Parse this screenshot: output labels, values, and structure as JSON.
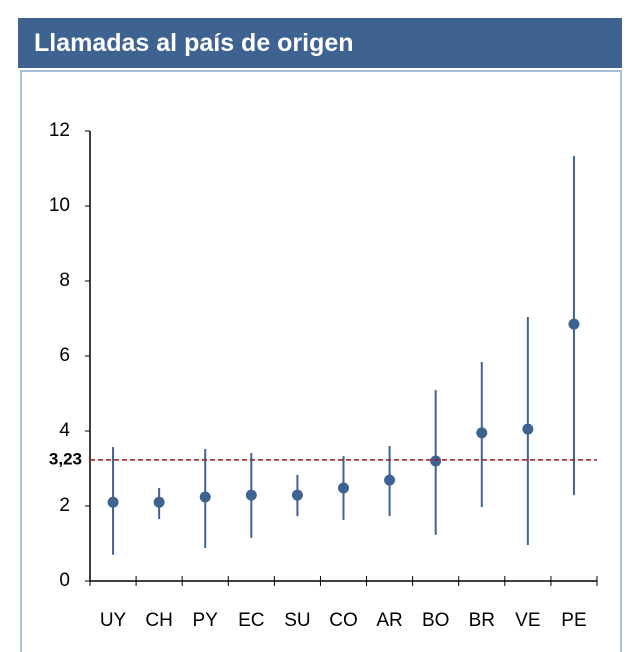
{
  "chart_data": {
    "type": "errorbar",
    "title": "Llamadas al país de origen",
    "categories": [
      "UY",
      "CH",
      "PY",
      "EC",
      "SU",
      "CO",
      "AR",
      "BO",
      "BR",
      "VE",
      "PE"
    ],
    "values": [
      2.1,
      2.1,
      2.24,
      2.29,
      2.29,
      2.48,
      2.69,
      3.2,
      3.95,
      4.05,
      6.85
    ],
    "lower": [
      0.7,
      1.65,
      0.88,
      1.15,
      1.73,
      1.63,
      1.73,
      1.23,
      1.97,
      0.96,
      2.29
    ],
    "upper": [
      3.57,
      2.48,
      3.52,
      3.41,
      2.83,
      3.33,
      3.6,
      5.09,
      5.84,
      7.04,
      11.33
    ],
    "color": "#3f6390",
    "reference": {
      "value": 3.23,
      "label": "3,23",
      "color": "#9b1b1b"
    },
    "ylim": [
      0,
      12
    ],
    "yticks": [
      0,
      2,
      4,
      6,
      8,
      10,
      12
    ],
    "grid": false
  }
}
